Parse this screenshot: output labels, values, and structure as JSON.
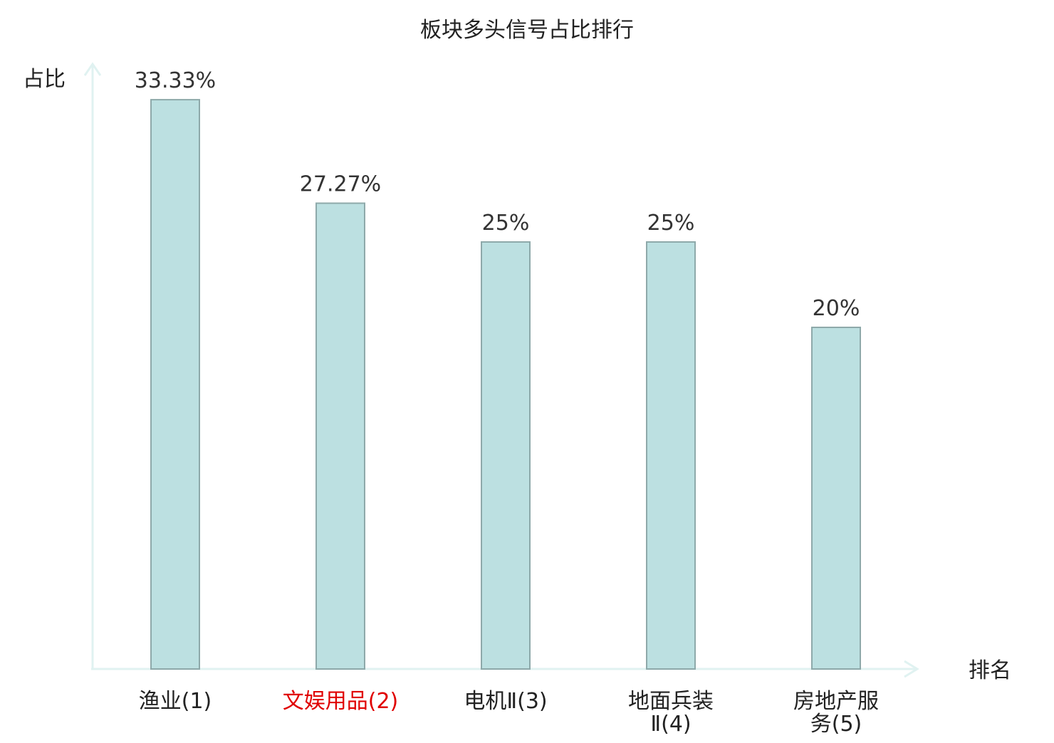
{
  "chart_data": {
    "type": "bar",
    "title": "板块多头信号占比排行",
    "ylabel": "占比",
    "xlabel": "排名",
    "categories": [
      [
        "渔业(1)"
      ],
      [
        "文娱用品(2)"
      ],
      [
        "电机Ⅱ(3)"
      ],
      [
        "地面兵装",
        "Ⅱ(4)"
      ],
      [
        "房地产服",
        "务(5)"
      ]
    ],
    "values": [
      33.33,
      27.27,
      25,
      25,
      20
    ],
    "value_labels": [
      "33.33%",
      "27.27%",
      "25%",
      "25%",
      "20%"
    ],
    "highlighted_category_index": 1,
    "ylim": [
      0,
      35
    ],
    "grid": false,
    "colors": {
      "bar_fill": "#bce0e1",
      "bar_stroke": "#8ea9aa",
      "axis": "#e0f2f1",
      "highlight_text": "#e00000",
      "text": "#222222",
      "value_label": "#333333"
    }
  }
}
